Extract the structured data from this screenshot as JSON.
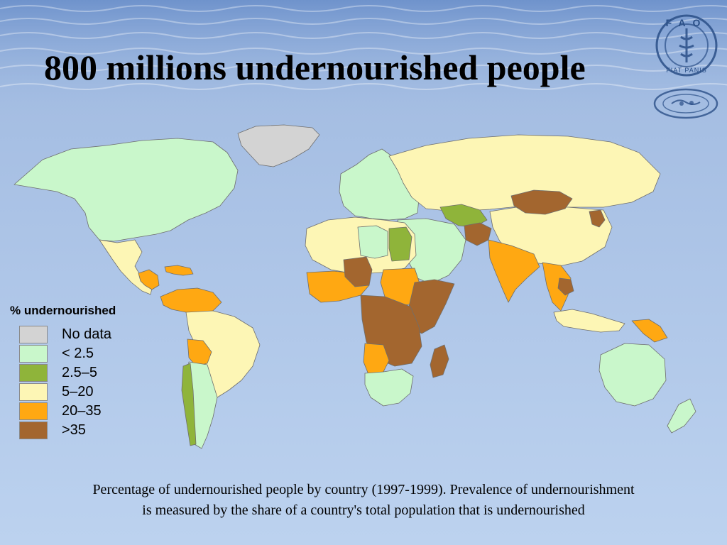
{
  "title": "800 millions undernourished people",
  "logos": {
    "fao_wordmark": "FAO",
    "fao_motto": "FIAT PANIS"
  },
  "legend": {
    "title": "% undernourished",
    "items": [
      {
        "label": "No data",
        "color": "#d3d3d3"
      },
      {
        "label": "< 2.5",
        "color": "#c9f7cb"
      },
      {
        "label": "2.5–5",
        "color": "#8fb43a"
      },
      {
        "label": "5–20",
        "color": "#fdf6b5"
      },
      {
        "label": "20–35",
        "color": "#ffa812"
      },
      {
        "label": ">35",
        "color": "#a3662f"
      }
    ]
  },
  "caption": {
    "line1": "Percentage of undernourished people by country (1997-1999). Prevalence of undernourishment",
    "line2": "is measured by the share of a country's total population that is undernourished"
  },
  "map": {
    "ocean_color": "#a9c2e6",
    "regions": [
      {
        "name": "north-america",
        "category": "< 2.5"
      },
      {
        "name": "greenland",
        "category": "No data"
      },
      {
        "name": "mexico-central-america",
        "category": "5–20"
      },
      {
        "name": "guatemala-honduras",
        "category": "20–35"
      },
      {
        "name": "caribbean",
        "category": "20–35"
      },
      {
        "name": "venezuela-colombia",
        "category": "20–35"
      },
      {
        "name": "brazil",
        "category": "5–20"
      },
      {
        "name": "bolivia",
        "category": "20–35"
      },
      {
        "name": "argentina-chile",
        "category": "< 2.5"
      },
      {
        "name": "chile-strip",
        "category": "2.5–5"
      },
      {
        "name": "europe",
        "category": "< 2.5"
      },
      {
        "name": "russia-north-asia",
        "category": "5–20"
      },
      {
        "name": "china",
        "category": "5–20"
      },
      {
        "name": "mongolia",
        "category": ">35"
      },
      {
        "name": "north-korea",
        "category": ">35"
      },
      {
        "name": "central-asia",
        "category": "2.5–5"
      },
      {
        "name": "afghanistan",
        "category": ">35"
      },
      {
        "name": "india",
        "category": "20–35"
      },
      {
        "name": "southeast-asia",
        "category": "20–35"
      },
      {
        "name": "cambodia",
        "category": ">35"
      },
      {
        "name": "indonesia",
        "category": "5–20"
      },
      {
        "name": "papua-new-guinea",
        "category": "20–35"
      },
      {
        "name": "middle-east",
        "category": "< 2.5"
      },
      {
        "name": "north-africa",
        "category": "5–20"
      },
      {
        "name": "libya",
        "category": "< 2.5"
      },
      {
        "name": "egypt",
        "category": "2.5–5"
      },
      {
        "name": "sahel",
        "category": "20–35"
      },
      {
        "name": "chad",
        "category": ">35"
      },
      {
        "name": "sudan",
        "category": "20–35"
      },
      {
        "name": "east-africa",
        "category": ">35"
      },
      {
        "name": "central-africa",
        "category": ">35"
      },
      {
        "name": "angola",
        "category": "20–35"
      },
      {
        "name": "southern-africa",
        "category": "< 2.5"
      },
      {
        "name": "madagascar",
        "category": ">35"
      },
      {
        "name": "australia",
        "category": "< 2.5"
      },
      {
        "name": "new-zealand",
        "category": "< 2.5"
      }
    ]
  }
}
